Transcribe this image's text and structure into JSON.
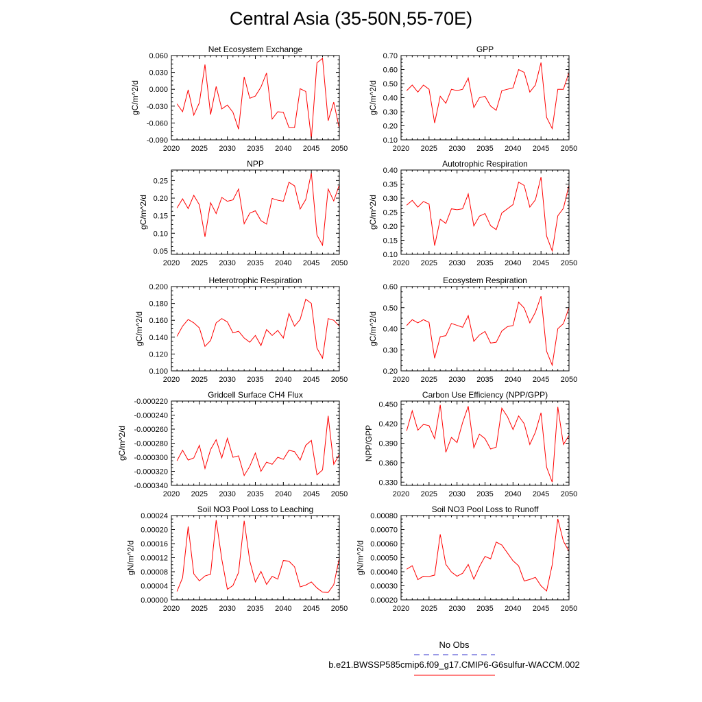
{
  "title": "Central Asia (35-50N,55-70E)",
  "colors": {
    "line": "#ff0000",
    "obs": "#3333cc",
    "axis": "#000000"
  },
  "legend": {
    "obs_label": "No Obs",
    "model_label": "b.e21.BWSSP585cmip6.f09_g17.CMIP6-G6sulfur-WACCM.002"
  },
  "chart_data": [
    {
      "type": "line",
      "title": "Net Ecosystem Exchange",
      "ylabel": "gC/m^2/d",
      "xlim": [
        2020,
        2050
      ],
      "ylim": [
        -0.09,
        0.06
      ],
      "yticks": [
        -0.09,
        -0.06,
        -0.03,
        0.0,
        0.03,
        0.06
      ],
      "yticklabels": [
        "-0.090",
        "-0.060",
        "-0.030",
        "0.000",
        "0.030",
        "0.060"
      ],
      "xticks": [
        2020,
        2025,
        2030,
        2035,
        2040,
        2045,
        2050
      ],
      "xticklabels": [
        "2020",
        "2025",
        "2030",
        "2035",
        "2040",
        "2045",
        "2050"
      ],
      "x": [
        2021,
        2022,
        2023,
        2024,
        2025,
        2026,
        2027,
        2028,
        2029,
        2030,
        2031,
        2032,
        2033,
        2034,
        2035,
        2036,
        2037,
        2038,
        2039,
        2040,
        2041,
        2042,
        2043,
        2044,
        2045,
        2046,
        2047,
        2048,
        2049,
        2050
      ],
      "values": [
        -0.026,
        -0.04,
        -0.001,
        -0.046,
        -0.024,
        0.044,
        -0.045,
        0.005,
        -0.035,
        -0.028,
        -0.041,
        -0.071,
        0.022,
        -0.016,
        -0.012,
        0.004,
        0.029,
        -0.053,
        -0.04,
        -0.041,
        -0.068,
        -0.068,
        0.001,
        -0.004,
        -0.088,
        0.047,
        0.055,
        -0.056,
        -0.023,
        -0.07
      ]
    },
    {
      "type": "line",
      "title": "GPP",
      "ylabel": "gC/m^2/d",
      "xlim": [
        2020,
        2050
      ],
      "ylim": [
        0.1,
        0.7
      ],
      "yticks": [
        0.1,
        0.2,
        0.3,
        0.4,
        0.5,
        0.6,
        0.7
      ],
      "yticklabels": [
        "0.10",
        "0.20",
        "0.30",
        "0.40",
        "0.50",
        "0.60",
        "0.70"
      ],
      "xticks": [
        2020,
        2025,
        2030,
        2035,
        2040,
        2045,
        2050
      ],
      "xticklabels": [
        "2020",
        "2025",
        "2030",
        "2035",
        "2040",
        "2045",
        "2050"
      ],
      "x": [
        2021,
        2022,
        2023,
        2024,
        2025,
        2026,
        2027,
        2028,
        2029,
        2030,
        2031,
        2032,
        2033,
        2034,
        2035,
        2036,
        2037,
        2038,
        2039,
        2040,
        2041,
        2042,
        2043,
        2044,
        2045,
        2046,
        2047,
        2048,
        2049,
        2050
      ],
      "values": [
        0.45,
        0.49,
        0.44,
        0.49,
        0.46,
        0.22,
        0.41,
        0.36,
        0.46,
        0.45,
        0.46,
        0.54,
        0.33,
        0.4,
        0.41,
        0.34,
        0.31,
        0.45,
        0.46,
        0.47,
        0.6,
        0.58,
        0.44,
        0.49,
        0.65,
        0.26,
        0.18,
        0.46,
        0.46,
        0.58
      ]
    },
    {
      "type": "line",
      "title": "NPP",
      "ylabel": "gC/m^2/d",
      "xlim": [
        2020,
        2050
      ],
      "ylim": [
        0.04,
        0.28
      ],
      "yticks": [
        0.05,
        0.1,
        0.15,
        0.2,
        0.25
      ],
      "yticklabels": [
        "0.05",
        "0.10",
        "0.15",
        "0.20",
        "0.25"
      ],
      "xticks": [
        2020,
        2025,
        2030,
        2035,
        2040,
        2045,
        2050
      ],
      "xticklabels": [
        "2020",
        "2025",
        "2030",
        "2035",
        "2040",
        "2045",
        "2050"
      ],
      "x": [
        2021,
        2022,
        2023,
        2024,
        2025,
        2026,
        2027,
        2028,
        2029,
        2030,
        2031,
        2032,
        2033,
        2034,
        2035,
        2036,
        2037,
        2038,
        2039,
        2040,
        2041,
        2042,
        2043,
        2044,
        2045,
        2046,
        2047,
        2048,
        2049,
        2050
      ],
      "values": [
        0.172,
        0.198,
        0.17,
        0.208,
        0.181,
        0.09,
        0.187,
        0.156,
        0.202,
        0.191,
        0.195,
        0.226,
        0.127,
        0.157,
        0.164,
        0.136,
        0.126,
        0.199,
        0.194,
        0.191,
        0.245,
        0.235,
        0.169,
        0.196,
        0.272,
        0.095,
        0.066,
        0.226,
        0.192,
        0.238
      ]
    },
    {
      "type": "line",
      "title": "Autotrophic Respiration",
      "ylabel": "gC/m^2/d",
      "xlim": [
        2020,
        2050
      ],
      "ylim": [
        0.1,
        0.4
      ],
      "yticks": [
        0.1,
        0.15,
        0.2,
        0.25,
        0.3,
        0.35,
        0.4
      ],
      "yticklabels": [
        "0.10",
        "0.15",
        "0.20",
        "0.25",
        "0.30",
        "0.35",
        "0.40"
      ],
      "xticks": [
        2020,
        2025,
        2030,
        2035,
        2040,
        2045,
        2050
      ],
      "xticklabels": [
        "2020",
        "2025",
        "2030",
        "2035",
        "2040",
        "2045",
        "2050"
      ],
      "x": [
        2021,
        2022,
        2023,
        2024,
        2025,
        2026,
        2027,
        2028,
        2029,
        2030,
        2031,
        2032,
        2033,
        2034,
        2035,
        2036,
        2037,
        2038,
        2039,
        2040,
        2041,
        2042,
        2043,
        2044,
        2045,
        2046,
        2047,
        2048,
        2049,
        2050
      ],
      "values": [
        0.275,
        0.292,
        0.268,
        0.288,
        0.279,
        0.131,
        0.225,
        0.21,
        0.262,
        0.259,
        0.262,
        0.315,
        0.201,
        0.236,
        0.245,
        0.202,
        0.188,
        0.247,
        0.262,
        0.277,
        0.357,
        0.345,
        0.268,
        0.294,
        0.375,
        0.165,
        0.112,
        0.237,
        0.264,
        0.346
      ]
    },
    {
      "type": "line",
      "title": "Heterotrophic Respiration",
      "ylabel": "gC/m^2/d",
      "xlim": [
        2020,
        2050
      ],
      "ylim": [
        0.1,
        0.2
      ],
      "yticks": [
        0.1,
        0.12,
        0.14,
        0.16,
        0.18,
        0.2
      ],
      "yticklabels": [
        "0.100",
        "0.120",
        "0.140",
        "0.160",
        "0.180",
        "0.200"
      ],
      "xticks": [
        2020,
        2025,
        2030,
        2035,
        2040,
        2045,
        2050
      ],
      "xticklabels": [
        "2020",
        "2025",
        "2030",
        "2035",
        "2040",
        "2045",
        "2050"
      ],
      "x": [
        2021,
        2022,
        2023,
        2024,
        2025,
        2026,
        2027,
        2028,
        2029,
        2030,
        2031,
        2032,
        2033,
        2034,
        2035,
        2036,
        2037,
        2038,
        2039,
        2040,
        2041,
        2042,
        2043,
        2044,
        2045,
        2046,
        2047,
        2048,
        2049,
        2050
      ],
      "values": [
        0.141,
        0.153,
        0.161,
        0.157,
        0.151,
        0.129,
        0.136,
        0.157,
        0.162,
        0.158,
        0.145,
        0.147,
        0.139,
        0.134,
        0.142,
        0.13,
        0.149,
        0.142,
        0.148,
        0.139,
        0.168,
        0.153,
        0.161,
        0.185,
        0.18,
        0.127,
        0.115,
        0.162,
        0.16,
        0.153
      ]
    },
    {
      "type": "line",
      "title": "Ecosystem Respiration",
      "ylabel": "gC/m^2/d",
      "xlim": [
        2020,
        2050
      ],
      "ylim": [
        0.2,
        0.6
      ],
      "yticks": [
        0.2,
        0.3,
        0.4,
        0.5,
        0.6
      ],
      "yticklabels": [
        "0.20",
        "0.30",
        "0.40",
        "0.50",
        "0.60"
      ],
      "xticks": [
        2020,
        2025,
        2030,
        2035,
        2040,
        2045,
        2050
      ],
      "xticklabels": [
        "2020",
        "2025",
        "2030",
        "2035",
        "2040",
        "2045",
        "2050"
      ],
      "x": [
        2021,
        2022,
        2023,
        2024,
        2025,
        2026,
        2027,
        2028,
        2029,
        2030,
        2031,
        2032,
        2033,
        2034,
        2035,
        2036,
        2037,
        2038,
        2039,
        2040,
        2041,
        2042,
        2043,
        2044,
        2045,
        2046,
        2047,
        2048,
        2049,
        2050
      ],
      "values": [
        0.415,
        0.443,
        0.428,
        0.443,
        0.43,
        0.26,
        0.362,
        0.367,
        0.425,
        0.416,
        0.407,
        0.462,
        0.34,
        0.37,
        0.387,
        0.332,
        0.336,
        0.389,
        0.41,
        0.415,
        0.526,
        0.498,
        0.428,
        0.478,
        0.554,
        0.293,
        0.227,
        0.4,
        0.424,
        0.5
      ]
    },
    {
      "type": "line",
      "title": "Gridcell Surface CH4 Flux",
      "ylabel": "gC/m^2/d",
      "xlim": [
        2020,
        2050
      ],
      "ylim": [
        -0.00034,
        -0.00022
      ],
      "yticks": [
        -0.00034,
        -0.00032,
        -0.0003,
        -0.00028,
        -0.00026,
        -0.00024,
        -0.00022
      ],
      "yticklabels": [
        "-0.000340",
        "-0.000320",
        "-0.000300",
        "-0.000280",
        "-0.000260",
        "-0.000240",
        "-0.000220"
      ],
      "xticks": [
        2020,
        2025,
        2030,
        2035,
        2040,
        2045,
        2050
      ],
      "xticklabels": [
        "2020",
        "2025",
        "2030",
        "2035",
        "2040",
        "2045",
        "2050"
      ],
      "x": [
        2021,
        2022,
        2023,
        2024,
        2025,
        2026,
        2027,
        2028,
        2029,
        2030,
        2031,
        2032,
        2033,
        2034,
        2035,
        2036,
        2037,
        2038,
        2039,
        2040,
        2041,
        2042,
        2043,
        2044,
        2045,
        2046,
        2047,
        2048,
        2049,
        2050
      ],
      "values": [
        -0.000305,
        -0.00029,
        -0.000304,
        -0.000301,
        -0.000283,
        -0.000316,
        -0.000289,
        -0.000275,
        -0.000301,
        -0.000273,
        -0.0003,
        -0.000298,
        -0.000326,
        -0.000313,
        -0.000294,
        -0.00032,
        -0.000307,
        -0.00031,
        -0.0003,
        -0.000303,
        -0.00029,
        -0.000292,
        -0.000304,
        -0.000283,
        -0.000276,
        -0.000325,
        -0.000318,
        -0.000241,
        -0.00031,
        -0.000296
      ]
    },
    {
      "type": "line",
      "title": "Carbon Use Efficiency (NPP/GPP)",
      "ylabel": "NPP/GPP",
      "xlim": [
        2020,
        2050
      ],
      "ylim": [
        0.325,
        0.455
      ],
      "yticks": [
        0.33,
        0.36,
        0.39,
        0.42,
        0.45
      ],
      "yticklabels": [
        "0.330",
        "0.360",
        "0.390",
        "0.420",
        "0.450"
      ],
      "xticks": [
        2020,
        2025,
        2030,
        2035,
        2040,
        2045,
        2050
      ],
      "xticklabels": [
        "2020",
        "2025",
        "2030",
        "2035",
        "2040",
        "2045",
        "2050"
      ],
      "x": [
        2021,
        2022,
        2023,
        2024,
        2025,
        2026,
        2027,
        2028,
        2029,
        2030,
        2031,
        2032,
        2033,
        2034,
        2035,
        2036,
        2037,
        2038,
        2039,
        2040,
        2041,
        2042,
        2043,
        2044,
        2045,
        2046,
        2047,
        2048,
        2049,
        2050
      ],
      "values": [
        0.409,
        0.44,
        0.41,
        0.419,
        0.417,
        0.397,
        0.449,
        0.376,
        0.399,
        0.391,
        0.422,
        0.447,
        0.383,
        0.404,
        0.397,
        0.381,
        0.384,
        0.444,
        0.431,
        0.411,
        0.432,
        0.42,
        0.388,
        0.407,
        0.437,
        0.353,
        0.33,
        0.446,
        0.388,
        0.402
      ]
    },
    {
      "type": "line",
      "title": "Soil NO3 Pool Loss to Leaching",
      "ylabel": "gN/m^2/d",
      "xlim": [
        2020,
        2050
      ],
      "ylim": [
        0.0,
        0.00024
      ],
      "yticks": [
        0.0,
        4e-05,
        8e-05,
        0.00012,
        0.00016,
        0.0002,
        0.00024
      ],
      "yticklabels": [
        "0.00000",
        "0.00004",
        "0.00008",
        "0.00012",
        "0.00016",
        "0.00020",
        "0.00024"
      ],
      "xticks": [
        2020,
        2025,
        2030,
        2035,
        2040,
        2045,
        2050
      ],
      "xticklabels": [
        "2020",
        "2025",
        "2030",
        "2035",
        "2040",
        "2045",
        "2050"
      ],
      "x": [
        2021,
        2022,
        2023,
        2024,
        2025,
        2026,
        2027,
        2028,
        2029,
        2030,
        2031,
        2032,
        2033,
        2034,
        2035,
        2036,
        2037,
        2038,
        2039,
        2040,
        2041,
        2042,
        2043,
        2044,
        2045,
        2046,
        2047,
        2048,
        2049,
        2050
      ],
      "values": [
        2.4e-05,
        6.3e-05,
        0.000209,
        7.4e-05,
        5.4e-05,
        6.8e-05,
        7.3e-05,
        0.000227,
        0.000116,
        3e-05,
        4.1e-05,
        7.8e-05,
        0.000225,
        0.000111,
        5.1e-05,
        8.1e-05,
        4.4e-05,
        6.7e-05,
        5.9e-05,
        0.000112,
        0.00011,
        9.4e-05,
        3.7e-05,
        4.2e-05,
        5.1e-05,
        3.4e-05,
        2.2e-05,
        2.1e-05,
        4.3e-05,
        0.000119
      ]
    },
    {
      "type": "line",
      "title": "Soil NO3 Pool Loss to Runoff",
      "ylabel": "gN/m^2/d",
      "xlim": [
        2020,
        2050
      ],
      "ylim": [
        0.0002,
        0.0008
      ],
      "yticks": [
        0.0002,
        0.0003,
        0.0004,
        0.0005,
        0.0006,
        0.0007,
        0.0008
      ],
      "yticklabels": [
        "0.00020",
        "0.00030",
        "0.00040",
        "0.00050",
        "0.00060",
        "0.00070",
        "0.00080"
      ],
      "xticks": [
        2020,
        2025,
        2030,
        2035,
        2040,
        2045,
        2050
      ],
      "xticklabels": [
        "2020",
        "2025",
        "2030",
        "2035",
        "2040",
        "2045",
        "2050"
      ],
      "x": [
        2021,
        2022,
        2023,
        2024,
        2025,
        2026,
        2027,
        2028,
        2029,
        2030,
        2031,
        2032,
        2033,
        2034,
        2035,
        2036,
        2037,
        2038,
        2039,
        2040,
        2041,
        2042,
        2043,
        2044,
        2045,
        2046,
        2047,
        2048,
        2049,
        2050
      ],
      "values": [
        0.000418,
        0.000443,
        0.000344,
        0.000368,
        0.000366,
        0.000376,
        0.000666,
        0.000453,
        0.000398,
        0.000368,
        0.000389,
        0.000452,
        0.000347,
        0.000436,
        0.000509,
        0.000492,
        0.000611,
        0.00059,
        0.000534,
        0.000478,
        0.000442,
        0.000334,
        0.000345,
        0.00036,
        0.0003,
        0.000263,
        0.000449,
        0.000776,
        0.000617,
        0.000545
      ]
    }
  ]
}
